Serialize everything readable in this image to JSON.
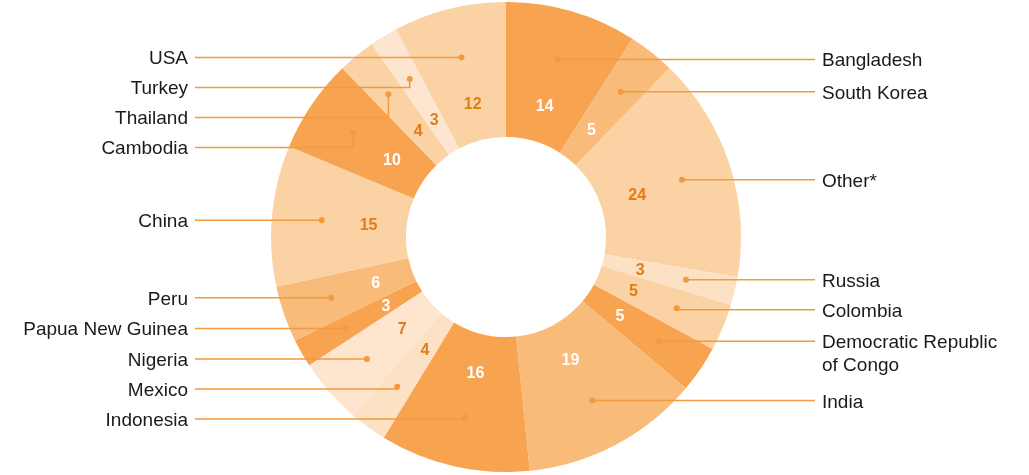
{
  "chart_data": {
    "type": "donut",
    "categories": [
      "Bangladesh",
      "South Korea",
      "Other*",
      "Russia",
      "Colombia",
      "Democratic Republic of Congo",
      "India",
      "Indonesia",
      "Mexico",
      "Nigeria",
      "Papua New Guinea",
      "Peru",
      "China",
      "Cambodia",
      "Thailand",
      "Turkey",
      "USA"
    ],
    "values": [
      14,
      5,
      24,
      3,
      5,
      5,
      19,
      16,
      4,
      7,
      3,
      6,
      15,
      10,
      4,
      3,
      12
    ],
    "colors": [
      "#f7a350",
      "#f9bb7a",
      "#fbd2a4",
      "#fde1c4",
      "#fbd2a4",
      "#f7a350",
      "#f9bb7a",
      "#f7a350",
      "#fde1c4",
      "#fde5cf",
      "#f7a350",
      "#f9bb7a",
      "#fbd2a4",
      "#f7a350",
      "#fbd2a4",
      "#fde5cf",
      "#fbd2a4"
    ],
    "data_labels": true
  }
}
